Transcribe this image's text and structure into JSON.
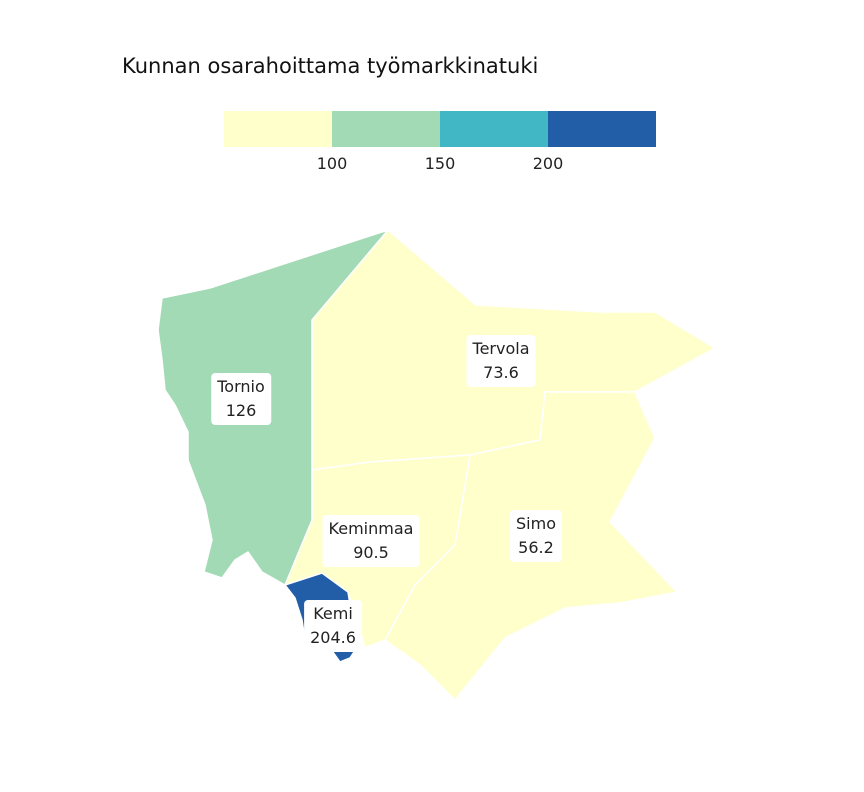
{
  "title": "Kunnan osarahoittama työmarkkinatuki",
  "legend": {
    "colors": [
      "#ffffcc",
      "#a1dab4",
      "#41b6c4",
      "#225ea8"
    ],
    "ticks": [
      "100",
      "150",
      "200"
    ]
  },
  "regions": [
    {
      "name": "Tornio",
      "value": "126",
      "color": "#a1dab4"
    },
    {
      "name": "Tervola",
      "value": "73.6",
      "color": "#ffffcc"
    },
    {
      "name": "Keminmaa",
      "value": "90.5",
      "color": "#ffffcc"
    },
    {
      "name": "Simo",
      "value": "56.2",
      "color": "#ffffcc"
    },
    {
      "name": "Kemi",
      "value": "204.6",
      "color": "#225ea8"
    }
  ]
}
